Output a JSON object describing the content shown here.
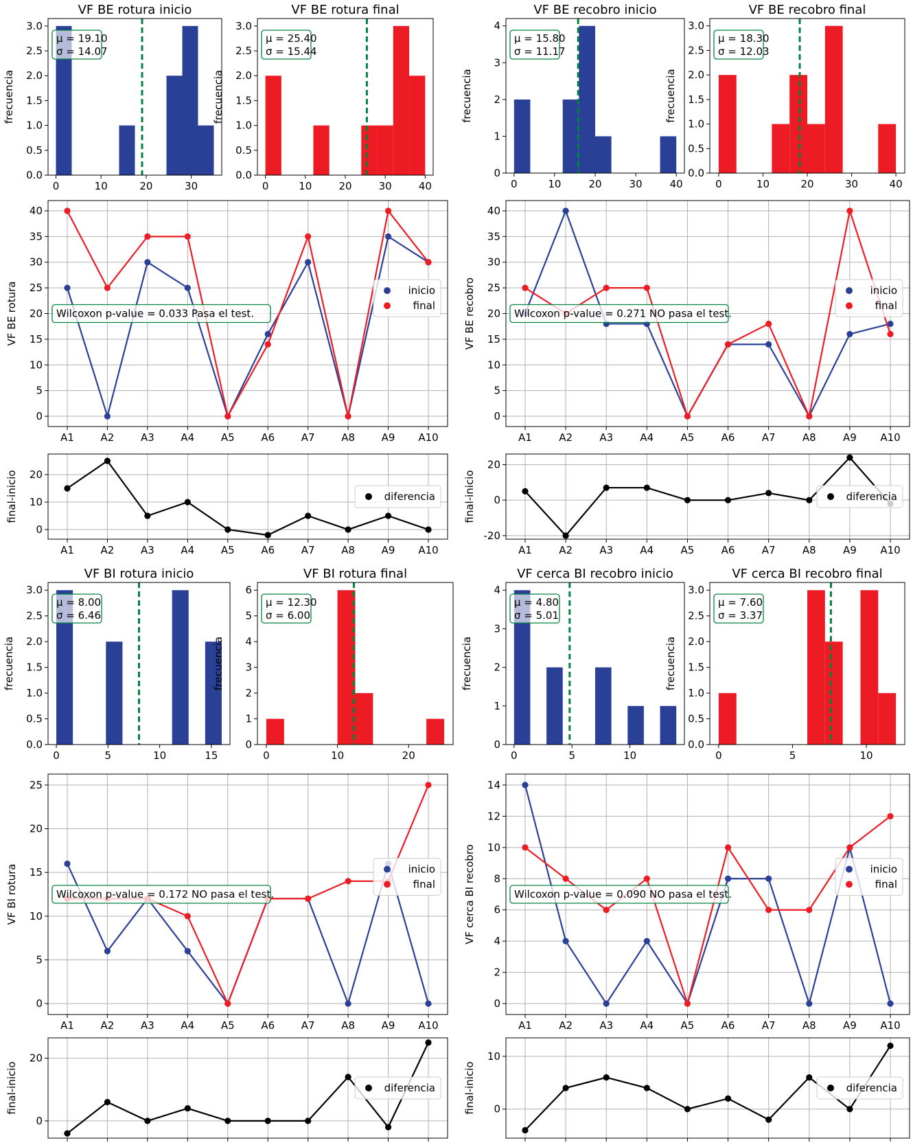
{
  "colors": {
    "inicio": "#2a3f96",
    "final": "#ed1c24",
    "diff": "#000000",
    "mean": "#00843d",
    "box": "#00843d"
  },
  "chart_data": [
    {
      "type": "histogram",
      "title": "VF BE rotura inicio",
      "ylabel": "frecuencia",
      "xlim": [
        -1.75,
        36.75
      ],
      "ylim": [
        0,
        3.15
      ],
      "xticks": [
        0,
        10,
        20,
        30
      ],
      "yticks": [
        0.0,
        0.5,
        1.0,
        1.5,
        2.0,
        2.5,
        3.0
      ],
      "color": "inicio",
      "bins": [
        {
          "x0": 0,
          "x1": 3.5,
          "count": 3
        },
        {
          "x0": 14,
          "x1": 17.5,
          "count": 1
        },
        {
          "x0": 24.5,
          "x1": 28,
          "count": 2
        },
        {
          "x0": 28,
          "x1": 31.5,
          "count": 3
        },
        {
          "x0": 31.5,
          "x1": 35,
          "count": 1
        }
      ],
      "mean": 19.1,
      "stats": {
        "mu": "μ = 19.10",
        "sigma": "σ = 14.07"
      }
    },
    {
      "type": "histogram",
      "title": "VF BE rotura final",
      "ylabel": "frecuencia",
      "xlim": [
        -2,
        42
      ],
      "ylim": [
        0,
        3.15
      ],
      "xticks": [
        0,
        10,
        20,
        30,
        40
      ],
      "yticks": [
        0.0,
        0.5,
        1.0,
        1.5,
        2.0,
        2.5,
        3.0
      ],
      "color": "final",
      "bins": [
        {
          "x0": 0,
          "x1": 4,
          "count": 2
        },
        {
          "x0": 12,
          "x1": 16,
          "count": 1
        },
        {
          "x0": 24,
          "x1": 28,
          "count": 1
        },
        {
          "x0": 28,
          "x1": 32,
          "count": 1
        },
        {
          "x0": 32,
          "x1": 36,
          "count": 3
        },
        {
          "x0": 36,
          "x1": 40,
          "count": 2
        }
      ],
      "mean": 25.4,
      "stats": {
        "mu": "μ = 25.40",
        "sigma": "σ = 15.44"
      }
    },
    {
      "type": "histogram",
      "title": "VF BE recobro inicio",
      "ylabel": "frecuencia",
      "xlim": [
        -2,
        42
      ],
      "ylim": [
        0,
        4.2
      ],
      "xticks": [
        0,
        10,
        20,
        30,
        40
      ],
      "yticks": [
        0,
        1,
        2,
        3,
        4
      ],
      "color": "inicio",
      "bins": [
        {
          "x0": 0,
          "x1": 4,
          "count": 2
        },
        {
          "x0": 12,
          "x1": 16,
          "count": 2
        },
        {
          "x0": 16,
          "x1": 20,
          "count": 4
        },
        {
          "x0": 20,
          "x1": 24,
          "count": 1
        },
        {
          "x0": 36,
          "x1": 40,
          "count": 1
        }
      ],
      "mean": 15.8,
      "stats": {
        "mu": "μ = 15.80",
        "sigma": "σ = 11.17"
      }
    },
    {
      "type": "histogram",
      "title": "VF BE recobro final",
      "ylabel": "frecuencia",
      "xlim": [
        -2,
        42
      ],
      "ylim": [
        0,
        3.15
      ],
      "xticks": [
        0,
        10,
        20,
        30,
        40
      ],
      "yticks": [
        0.0,
        0.5,
        1.0,
        1.5,
        2.0,
        2.5,
        3.0
      ],
      "color": "final",
      "bins": [
        {
          "x0": 0,
          "x1": 4,
          "count": 2
        },
        {
          "x0": 12,
          "x1": 16,
          "count": 1
        },
        {
          "x0": 16,
          "x1": 20,
          "count": 2
        },
        {
          "x0": 20,
          "x1": 24,
          "count": 1
        },
        {
          "x0": 24,
          "x1": 28,
          "count": 3
        },
        {
          "x0": 36,
          "x1": 40,
          "count": 1
        }
      ],
      "mean": 18.3,
      "stats": {
        "mu": "μ = 18.30",
        "sigma": "σ = 12.03"
      }
    },
    {
      "type": "line",
      "ylabel": "VF BE rotura",
      "categories": [
        "A1",
        "A2",
        "A3",
        "A4",
        "A5",
        "A6",
        "A7",
        "A8",
        "A9",
        "A10"
      ],
      "ylim": [
        -2,
        42
      ],
      "yticks": [
        0,
        5,
        10,
        15,
        20,
        25,
        30,
        35,
        40
      ],
      "series": [
        {
          "name": "inicio",
          "color": "inicio",
          "values": [
            25,
            0,
            30,
            25,
            0,
            16,
            30,
            0,
            35,
            30
          ]
        },
        {
          "name": "final",
          "color": "final",
          "values": [
            40,
            25,
            35,
            35,
            0,
            14,
            35,
            0,
            40,
            30
          ]
        }
      ],
      "annotation": "Wilcoxon p-value = 0.033 Pasa el test.",
      "annotation_y": 20
    },
    {
      "type": "line",
      "ylabel": "VF BE recobro",
      "categories": [
        "A1",
        "A2",
        "A3",
        "A4",
        "A5",
        "A6",
        "A7",
        "A8",
        "A9",
        "A10"
      ],
      "ylim": [
        -2,
        42
      ],
      "yticks": [
        0,
        5,
        10,
        15,
        20,
        25,
        30,
        35,
        40
      ],
      "series": [
        {
          "name": "inicio",
          "color": "inicio",
          "values": [
            20,
            40,
            18,
            18,
            0,
            14,
            14,
            0,
            16,
            18
          ]
        },
        {
          "name": "final",
          "color": "final",
          "values": [
            25,
            20,
            25,
            25,
            0,
            14,
            18,
            0,
            40,
            16
          ]
        }
      ],
      "annotation": "Wilcoxon p-value = 0.271 NO pasa el test.",
      "annotation_y": 20
    },
    {
      "type": "line",
      "ylabel": "final-inicio",
      "categories": [
        "A1",
        "A2",
        "A3",
        "A4",
        "A5",
        "A6",
        "A7",
        "A8",
        "A9",
        "A10"
      ],
      "ylim": [
        -3.5,
        27.5
      ],
      "yticks": [
        0,
        10,
        20
      ],
      "series": [
        {
          "name": "diferencia",
          "color": "diff",
          "values": [
            15,
            25,
            5,
            10,
            0,
            -2,
            5,
            0,
            5,
            0
          ]
        }
      ]
    },
    {
      "type": "line",
      "ylabel": "final-inicio",
      "categories": [
        "A1",
        "A2",
        "A3",
        "A4",
        "A5",
        "A6",
        "A7",
        "A8",
        "A9",
        "A10"
      ],
      "ylim": [
        -22,
        26
      ],
      "yticks": [
        -20,
        0,
        20
      ],
      "series": [
        {
          "name": "diferencia",
          "color": "diff",
          "values": [
            5,
            -20,
            7,
            7,
            0,
            0,
            4,
            0,
            24,
            -2
          ]
        }
      ]
    },
    {
      "type": "histogram",
      "title": "VF BI rotura inicio",
      "ylabel": "frecuencia",
      "xlim": [
        -0.8,
        16.8
      ],
      "ylim": [
        0,
        3.15
      ],
      "xticks": [
        0,
        5,
        10,
        15
      ],
      "yticks": [
        0.0,
        0.5,
        1.0,
        1.5,
        2.0,
        2.5,
        3.0
      ],
      "color": "inicio",
      "bins": [
        {
          "x0": 0,
          "x1": 1.6,
          "count": 3
        },
        {
          "x0": 4.8,
          "x1": 6.4,
          "count": 2
        },
        {
          "x0": 11.2,
          "x1": 12.8,
          "count": 3
        },
        {
          "x0": 14.4,
          "x1": 16,
          "count": 2
        }
      ],
      "mean": 8.0,
      "stats": {
        "mu": "μ = 8.00",
        "sigma": "σ = 6.46"
      }
    },
    {
      "type": "histogram",
      "title": "VF BI rotura final",
      "ylabel": "frecuencia",
      "xlim": [
        -1.25,
        26.25
      ],
      "ylim": [
        0,
        6.3
      ],
      "xticks": [
        0,
        10,
        20
      ],
      "yticks": [
        0,
        1,
        2,
        3,
        4,
        5,
        6
      ],
      "color": "final",
      "bins": [
        {
          "x0": 0,
          "x1": 2.5,
          "count": 1
        },
        {
          "x0": 10,
          "x1": 12.5,
          "count": 6
        },
        {
          "x0": 12.5,
          "x1": 15,
          "count": 2
        },
        {
          "x0": 22.5,
          "x1": 25,
          "count": 1
        }
      ],
      "mean": 12.3,
      "stats": {
        "mu": "μ = 12.30",
        "sigma": "σ = 6.00"
      }
    },
    {
      "type": "histogram",
      "title": "VF cerca BI recobro inicio",
      "ylabel": "frecuencia",
      "xlim": [
        -0.7,
        14.7
      ],
      "ylim": [
        0,
        4.2
      ],
      "xticks": [
        0,
        5,
        10
      ],
      "yticks": [
        0,
        1,
        2,
        3,
        4
      ],
      "color": "inicio",
      "bins": [
        {
          "x0": 0,
          "x1": 1.4,
          "count": 4
        },
        {
          "x0": 2.8,
          "x1": 4.2,
          "count": 2
        },
        {
          "x0": 7,
          "x1": 8.4,
          "count": 2
        },
        {
          "x0": 9.8,
          "x1": 11.2,
          "count": 1
        },
        {
          "x0": 12.6,
          "x1": 14,
          "count": 1
        }
      ],
      "mean": 4.8,
      "stats": {
        "mu": "μ = 4.80",
        "sigma": "σ = 5.01"
      }
    },
    {
      "type": "histogram",
      "title": "VF cerca BI recobro final",
      "ylabel": "frecuencia",
      "xlim": [
        -0.6,
        12.6
      ],
      "ylim": [
        0,
        3.15
      ],
      "xticks": [
        0,
        5,
        10
      ],
      "yticks": [
        0.0,
        0.5,
        1.0,
        1.5,
        2.0,
        2.5,
        3.0
      ],
      "color": "final",
      "bins": [
        {
          "x0": 0,
          "x1": 1.2,
          "count": 1
        },
        {
          "x0": 6,
          "x1": 7.2,
          "count": 3
        },
        {
          "x0": 7.2,
          "x1": 8.4,
          "count": 2
        },
        {
          "x0": 9.6,
          "x1": 10.8,
          "count": 3
        },
        {
          "x0": 10.8,
          "x1": 12,
          "count": 1
        }
      ],
      "mean": 7.6,
      "stats": {
        "mu": "μ = 7.60",
        "sigma": "σ = 3.37"
      }
    },
    {
      "type": "line",
      "ylabel": "VF BI rotura",
      "categories": [
        "A1",
        "A2",
        "A3",
        "A4",
        "A5",
        "A6",
        "A7",
        "A8",
        "A9",
        "A10"
      ],
      "ylim": [
        -1.25,
        26.25
      ],
      "yticks": [
        0,
        5,
        10,
        15,
        20,
        25
      ],
      "series": [
        {
          "name": "inicio",
          "color": "inicio",
          "values": [
            16,
            6,
            12,
            6,
            0,
            12,
            12,
            0,
            16,
            0
          ]
        },
        {
          "name": "final",
          "color": "final",
          "values": [
            12,
            12,
            12,
            10,
            0,
            12,
            12,
            14,
            14,
            25
          ]
        }
      ],
      "annotation": "Wilcoxon p-value = 0.172 NO pasa el test.",
      "annotation_y": 12.5
    },
    {
      "type": "line",
      "ylabel": "VF cerca BI recobro",
      "categories": [
        "A1",
        "A2",
        "A3",
        "A4",
        "A5",
        "A6",
        "A7",
        "A8",
        "A9",
        "A10"
      ],
      "ylim": [
        -0.7,
        14.7
      ],
      "yticks": [
        0,
        2,
        4,
        6,
        8,
        10,
        12,
        14
      ],
      "series": [
        {
          "name": "inicio",
          "color": "inicio",
          "values": [
            14,
            4,
            0,
            4,
            0,
            8,
            8,
            0,
            10,
            0
          ]
        },
        {
          "name": "final",
          "color": "final",
          "values": [
            10,
            8,
            6,
            8,
            0,
            10,
            6,
            6,
            10,
            12
          ]
        }
      ],
      "annotation": "Wilcoxon p-value = 0.090 NO pasa el test.",
      "annotation_y": 7
    },
    {
      "type": "line",
      "ylabel": "final-inicio",
      "categories": [
        "A1",
        "A2",
        "A3",
        "A4",
        "A5",
        "A6",
        "A7",
        "A8",
        "A9",
        "A10"
      ],
      "ylim": [
        -5.5,
        26.5
      ],
      "yticks": [
        0,
        20
      ],
      "series": [
        {
          "name": "diferencia",
          "color": "diff",
          "values": [
            -4,
            6,
            0,
            4,
            0,
            0,
            0,
            14,
            -2,
            25
          ]
        }
      ]
    },
    {
      "type": "line",
      "ylabel": "final-inicio",
      "categories": [
        "A1",
        "A2",
        "A3",
        "A4",
        "A5",
        "A6",
        "A7",
        "A8",
        "A9",
        "A10"
      ],
      "ylim": [
        -5.5,
        13.5
      ],
      "yticks": [
        0,
        10
      ],
      "series": [
        {
          "name": "diferencia",
          "color": "diff",
          "values": [
            -4,
            4,
            6,
            4,
            0,
            2,
            -2,
            6,
            0,
            12
          ]
        }
      ]
    }
  ]
}
